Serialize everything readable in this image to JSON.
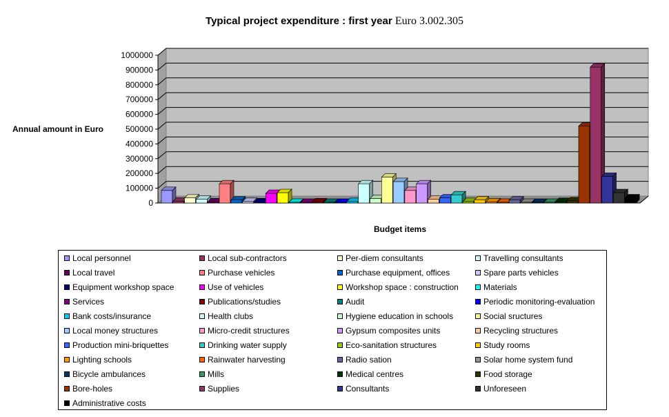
{
  "chart_data": {
    "type": "bar",
    "title": "Typical project expenditure : first year",
    "subtitle": "Euro 3.002.305",
    "xlabel": "Budget items",
    "ylabel": "Annual amount in Euro",
    "ylim": [
      0,
      1000000
    ],
    "y_ticks": [
      "0",
      "100000",
      "200000",
      "300000",
      "400000",
      "500000",
      "600000",
      "700000",
      "800000",
      "900000",
      "1000000"
    ],
    "grid": true,
    "legend_position": "bottom",
    "series": [
      {
        "name": "Local personnel",
        "color": "#9999ff",
        "value": 85000
      },
      {
        "name": "Local sub-contractors",
        "color": "#993366",
        "value": 12000
      },
      {
        "name": "Per-diem consultants",
        "color": "#ffffcc",
        "value": 35000
      },
      {
        "name": "Travelling consultants",
        "color": "#ccffff",
        "value": 25000
      },
      {
        "name": "Local travel",
        "color": "#660066",
        "value": 8000
      },
      {
        "name": "Purchase vehicles",
        "color": "#ff8080",
        "value": 130000
      },
      {
        "name": "Purchase equipment, offices",
        "color": "#0066cc",
        "value": 20000
      },
      {
        "name": "Spare parts vehicles",
        "color": "#ccccff",
        "value": 10000
      },
      {
        "name": "Equipment workshop space",
        "color": "#000080",
        "value": 8000
      },
      {
        "name": "Use of vehicles",
        "color": "#ff00ff",
        "value": 65000
      },
      {
        "name": "Workshop space : construction",
        "color": "#ffff00",
        "value": 70000
      },
      {
        "name": "Materials",
        "color": "#00ffff",
        "value": 5000
      },
      {
        "name": "Services",
        "color": "#800080",
        "value": 5000
      },
      {
        "name": "Publications/studies",
        "color": "#800000",
        "value": 8000
      },
      {
        "name": "Audit",
        "color": "#008080",
        "value": 5000
      },
      {
        "name": "Periodic monitoring-evaluation",
        "color": "#0000ff",
        "value": 5000
      },
      {
        "name": "Bank costs/insurance",
        "color": "#00ccff",
        "value": 10000
      },
      {
        "name": "Health clubs",
        "color": "#ccffff",
        "value": 130000
      },
      {
        "name": "Hygiene education in schools",
        "color": "#ccffcc",
        "value": 30000
      },
      {
        "name": "Social sructures",
        "color": "#ffff99",
        "value": 175000
      },
      {
        "name": "Local money structures",
        "color": "#99ccff",
        "value": 145000
      },
      {
        "name": "Micro-credit structures",
        "color": "#ff99cc",
        "value": 85000
      },
      {
        "name": "Gypsum composites units",
        "color": "#cc99ff",
        "value": 130000
      },
      {
        "name": "Recycling structures",
        "color": "#ffcc99",
        "value": 25000
      },
      {
        "name": "Production mini-briquettes",
        "color": "#3366ff",
        "value": 35000
      },
      {
        "name": "Drinking water supply",
        "color": "#33cccc",
        "value": 55000
      },
      {
        "name": "Eco-sanitation structures",
        "color": "#99cc00",
        "value": 10000
      },
      {
        "name": "Study rooms",
        "color": "#ffcc00",
        "value": 20000
      },
      {
        "name": "Lighting schools",
        "color": "#ff9900",
        "value": 8000
      },
      {
        "name": "Rainwater harvesting",
        "color": "#ff6600",
        "value": 5000
      },
      {
        "name": "Radio sation",
        "color": "#666699",
        "value": 20000
      },
      {
        "name": "Solar home system fund",
        "color": "#969696",
        "value": 5000
      },
      {
        "name": "Bicycle ambulances",
        "color": "#003366",
        "value": 5000
      },
      {
        "name": "Mills",
        "color": "#339966",
        "value": 5000
      },
      {
        "name": "Medical centres",
        "color": "#003300",
        "value": 10000
      },
      {
        "name": "Food storage",
        "color": "#333300",
        "value": 15000
      },
      {
        "name": "Bore-holes",
        "color": "#993300",
        "value": 520000
      },
      {
        "name": "Supplies",
        "color": "#993366",
        "value": 920000
      },
      {
        "name": "Consultants",
        "color": "#333399",
        "value": 180000
      },
      {
        "name": "Unforeseen",
        "color": "#333333",
        "value": 70000
      },
      {
        "name": "Administrative costs",
        "color": "#000000",
        "value": 35000
      }
    ]
  }
}
